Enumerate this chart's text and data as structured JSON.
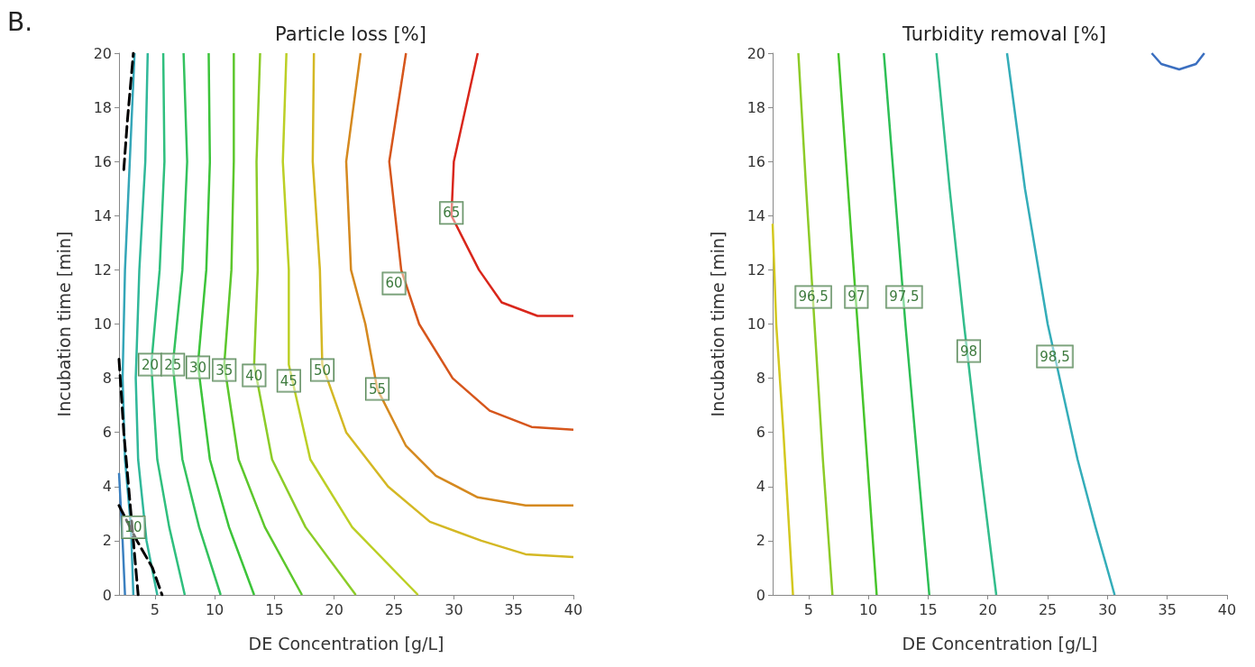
{
  "chart_data": [
    {
      "type": "line",
      "title": "Particle loss [%]",
      "xlabel": "DE Concentration [g/L]",
      "ylabel": "Incubation time [min]",
      "xlim": [
        2,
        40
      ],
      "xticks": [
        5,
        10,
        15,
        20,
        25,
        30,
        35,
        40
      ],
      "ylim": [
        0,
        20
      ],
      "yticks": [
        0,
        2,
        4,
        6,
        8,
        10,
        12,
        14,
        16,
        18,
        20
      ],
      "grid": false,
      "series": [
        {
          "color": "#3b80c0",
          "x": [
            2,
            2.3,
            2.5
          ],
          "values": [
            4.5,
            2,
            0
          ]
        },
        {
          "color": "#34a6b8",
          "x": [
            3.3,
            2.9,
            2.5,
            2.3,
            2.5,
            3.0,
            3.2
          ],
          "values": [
            20,
            16,
            12,
            8,
            5,
            2.5,
            0
          ]
        },
        {
          "color": "#30b89a",
          "x": [
            4.4,
            4.2,
            3.7,
            3.4,
            3.6,
            4.3,
            5.2
          ],
          "values": [
            20,
            16,
            12,
            8,
            5,
            2,
            0
          ]
        },
        {
          "color": "#2fbf7e",
          "x": [
            5.7,
            5.8,
            5.4,
            4.7,
            5.2,
            6.2,
            7.5
          ],
          "values": [
            20,
            16,
            12,
            8.5,
            5,
            2.5,
            0
          ]
        },
        {
          "color": "#33c25e",
          "x": [
            7.4,
            7.7,
            7.3,
            6.5,
            7.3,
            8.7,
            10.5
          ],
          "values": [
            20,
            16,
            12,
            8.5,
            5,
            2.5,
            0
          ]
        },
        {
          "color": "#3cc43a",
          "x": [
            9.5,
            9.6,
            9.3,
            8.6,
            9.6,
            11.2,
            13.3
          ],
          "values": [
            20,
            16,
            12,
            8.5,
            5,
            2.5,
            0
          ]
        },
        {
          "color": "#5cc72c",
          "x": [
            11.6,
            11.6,
            11.4,
            10.8,
            12.0,
            14.2,
            17.3
          ],
          "values": [
            20,
            16,
            12,
            8.5,
            5,
            2.5,
            0
          ]
        },
        {
          "color": "#8ccc28",
          "x": [
            13.8,
            13.5,
            13.6,
            13.3,
            14.8,
            17.6,
            21.8
          ],
          "values": [
            20,
            16,
            12,
            8.5,
            5,
            2.5,
            0
          ]
        },
        {
          "color": "#bccf25",
          "x": [
            16.0,
            15.7,
            16.2,
            16.2,
            18.0,
            21.5,
            27
          ],
          "values": [
            20,
            16,
            12,
            8.5,
            5,
            2.5,
            0
          ]
        },
        {
          "color": "#d4b824",
          "x": [
            18.3,
            18.2,
            18.8,
            19.0,
            21.0,
            24.5,
            28,
            32.3,
            36,
            40
          ],
          "values": [
            20,
            16,
            12,
            8.5,
            6,
            4,
            2.7,
            2,
            1.5,
            1.4
          ]
        },
        {
          "color": "#d5891f",
          "x": [
            22.2,
            21.0,
            21.4,
            22.6,
            23.6,
            26,
            28.5,
            32,
            36,
            40
          ],
          "values": [
            20,
            16,
            12,
            10,
            7.6,
            5.5,
            4.4,
            3.6,
            3.3,
            3.3
          ]
        },
        {
          "color": "#d6561c",
          "x": [
            26.0,
            24.6,
            25.6,
            27.1,
            29.9,
            33,
            36.5,
            40
          ],
          "values": [
            20,
            16,
            12,
            10,
            8,
            6.8,
            6.2,
            6.1
          ]
        },
        {
          "color": "#d9261b",
          "x": [
            32.0,
            30.0,
            29.8,
            32.1,
            34,
            37,
            40
          ],
          "values": [
            20,
            16,
            14,
            12,
            10.8,
            10.3,
            10.3
          ]
        },
        {
          "type": "line",
          "line_style": "dashed",
          "color": "#000000",
          "x": [
            2.4,
            2.7,
            3.2
          ],
          "values": [
            15.7,
            17.5,
            20
          ]
        },
        {
          "type": "line",
          "line_style": "dashed",
          "color": "#000000",
          "x": [
            2,
            2.4,
            3.0,
            3.6
          ],
          "values": [
            8.7,
            6,
            3,
            0
          ]
        },
        {
          "type": "line",
          "line_style": "dashed",
          "color": "#000000",
          "x": [
            2,
            3.5,
            4.8,
            5.6
          ],
          "values": [
            3.3,
            2.0,
            1.0,
            0
          ]
        }
      ],
      "annotations": [
        "B.",
        {
          "text": "10",
          "x": 3.2,
          "y": 2.5
        },
        {
          "text": "20",
          "x": 4.6,
          "y": 8.5
        },
        {
          "text": "25",
          "x": 6.5,
          "y": 8.5
        },
        {
          "text": "30",
          "x": 8.6,
          "y": 8.4
        },
        {
          "text": "35",
          "x": 10.8,
          "y": 8.3
        },
        {
          "text": "40",
          "x": 13.3,
          "y": 8.1
        },
        {
          "text": "45",
          "x": 16.2,
          "y": 7.9
        },
        {
          "text": "50",
          "x": 19.0,
          "y": 8.3
        },
        {
          "text": "55",
          "x": 23.6,
          "y": 7.6
        },
        {
          "text": "60",
          "x": 25.0,
          "y": 11.5
        },
        {
          "text": "65",
          "x": 29.8,
          "y": 14.1
        }
      ]
    },
    {
      "type": "line",
      "title": "Turbidity removal [%]",
      "xlabel": "DE Concentration [g/L]",
      "ylabel": "Incubation time [min]",
      "xlim": [
        2,
        40
      ],
      "xticks": [
        5,
        10,
        15,
        20,
        25,
        30,
        35,
        40
      ],
      "ylim": [
        0,
        20
      ],
      "yticks": [
        0,
        2,
        4,
        6,
        8,
        10,
        12,
        14,
        16,
        18,
        20
      ],
      "grid": false,
      "series": [
        {
          "color": "#d3c820",
          "x": [
            2,
            2.3,
            2.9,
            3.7
          ],
          "values": [
            13.7,
            10,
            6,
            0
          ]
        },
        {
          "color": "#8dcb28",
          "x": [
            4.15,
            4.8,
            5.5,
            6.2,
            7.0
          ],
          "values": [
            20,
            15,
            10,
            5,
            0
          ]
        },
        {
          "color": "#47c52c",
          "x": [
            7.5,
            8.3,
            9.1,
            9.9,
            10.7
          ],
          "values": [
            20,
            15,
            10,
            5,
            0
          ]
        },
        {
          "color": "#2dbf55",
          "x": [
            11.3,
            12.2,
            13.1,
            14.1,
            15.1
          ],
          "values": [
            20,
            15,
            10,
            5,
            0
          ]
        },
        {
          "color": "#33bd8c",
          "x": [
            15.7,
            16.8,
            18.0,
            19.3,
            20.7
          ],
          "values": [
            20,
            15,
            10,
            5,
            0
          ]
        },
        {
          "color": "#34adb9",
          "x": [
            21.6,
            23.1,
            25.0,
            27.5,
            29.0,
            30.6
          ],
          "values": [
            20,
            15,
            10,
            5,
            2.5,
            0
          ]
        },
        {
          "color": "#3b6fc0",
          "x": [
            33.7,
            34.5,
            36,
            37.4,
            38.1
          ],
          "values": [
            20,
            19.6,
            19.4,
            19.6,
            20
          ]
        }
      ],
      "annotations": [
        {
          "text": "96,5",
          "x": 5.4,
          "y": 11
        },
        {
          "text": "97",
          "x": 9.0,
          "y": 11
        },
        {
          "text": "97,5",
          "x": 13.0,
          "y": 11
        },
        {
          "text": "98",
          "x": 18.4,
          "y": 9.0
        },
        {
          "text": "98,5",
          "x": 25.6,
          "y": 8.8
        }
      ]
    }
  ]
}
